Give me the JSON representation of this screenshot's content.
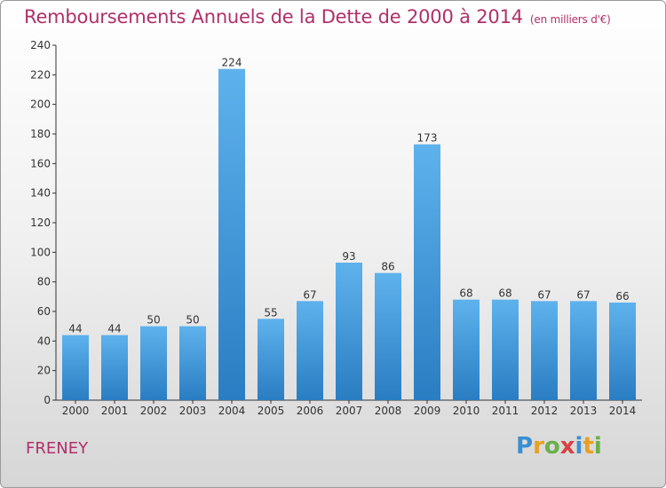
{
  "title": "Remboursements Annuels de la Dette de 2000 à 2014",
  "subtitle": "(en milliers d'€)",
  "commune": "FRENEY",
  "logo": {
    "text": "Proxiti"
  },
  "colors": {
    "title": "#b0306a",
    "bar_top": "#5eb2ec",
    "bar_bottom": "#2a7dc2",
    "axis": "#333333"
  },
  "chart_data": {
    "type": "bar",
    "title": "Remboursements Annuels de la Dette de 2000 à 2014",
    "subtitle": "(en milliers d'€)",
    "categories": [
      "2000",
      "2001",
      "2002",
      "2003",
      "2004",
      "2005",
      "2006",
      "2007",
      "2008",
      "2009",
      "2010",
      "2011",
      "2012",
      "2013",
      "2014"
    ],
    "values": [
      44,
      44,
      50,
      50,
      224,
      55,
      67,
      93,
      86,
      173,
      68,
      68,
      67,
      67,
      66
    ],
    "ylim": [
      0,
      240
    ],
    "yticks": [
      0,
      20,
      40,
      60,
      80,
      100,
      120,
      140,
      160,
      180,
      200,
      220,
      240
    ],
    "grid": false,
    "data_labels": true
  }
}
